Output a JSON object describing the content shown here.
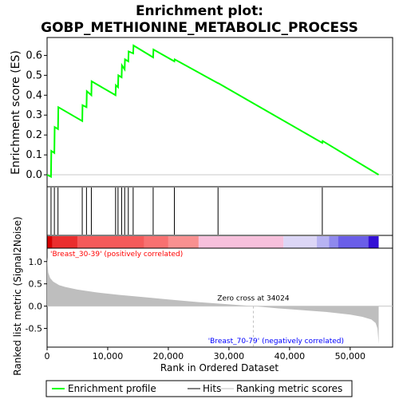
{
  "chart_data": [
    {
      "type": "line",
      "title_line1": "Enrichment plot:",
      "title_line2": "GOBP_METHIONINE_METABOLIC_PROCESS",
      "ylabel": "Enrichment score (ES)",
      "xlim": [
        0,
        57000
      ],
      "ylim": [
        -0.06,
        0.69
      ],
      "y_ticks": [
        "0.0",
        "0.1",
        "0.2",
        "0.3",
        "0.4",
        "0.5",
        "0.6"
      ],
      "y_tick_values": [
        0.0,
        0.1,
        0.2,
        0.3,
        0.4,
        0.5,
        0.6
      ],
      "series": [
        {
          "name": "Enrichment profile",
          "color": "#00ff00",
          "x": [
            0,
            650,
            700,
            1200,
            1250,
            1800,
            1850,
            5800,
            5850,
            6500,
            6550,
            7300,
            7350,
            11300,
            11350,
            11700,
            11750,
            12300,
            12350,
            12800,
            12850,
            13400,
            13450,
            14200,
            14250,
            17500,
            17550,
            21000,
            21050,
            28200,
            28250,
            45400,
            45450,
            54700
          ],
          "y": [
            0.0,
            -0.01,
            0.12,
            0.11,
            0.24,
            0.23,
            0.34,
            0.27,
            0.35,
            0.34,
            0.42,
            0.4,
            0.47,
            0.4,
            0.45,
            0.44,
            0.5,
            0.49,
            0.55,
            0.53,
            0.58,
            0.57,
            0.62,
            0.61,
            0.65,
            0.59,
            0.63,
            0.57,
            0.58,
            0.46,
            0.46,
            0.16,
            0.17,
            0.0
          ]
        }
      ]
    },
    {
      "type": "hits",
      "name": "Hits",
      "hit_positions": [
        650,
        1200,
        1800,
        5800,
        6500,
        7300,
        11300,
        11700,
        12300,
        12800,
        13400,
        14200,
        17500,
        21000,
        28200,
        45400
      ]
    },
    {
      "type": "area",
      "name": "Ranking metric scores",
      "ylabel": "Ranked list metric (Signal2Noise)",
      "xlabel": "Rank in Ordered Dataset",
      "xlim": [
        0,
        57000
      ],
      "ylim": [
        -0.92,
        1.3
      ],
      "y_ticks": [
        "-0.5",
        "0.0",
        "0.5",
        "1.0"
      ],
      "y_tick_values": [
        -0.5,
        0.0,
        0.5,
        1.0
      ],
      "x_ticks": [
        "0",
        "10,000",
        "20,000",
        "30,000",
        "40,000",
        "50,000"
      ],
      "x_tick_values": [
        0,
        10000,
        20000,
        30000,
        40000,
        50000
      ],
      "color": "#bebebe",
      "x": [
        0,
        200,
        500,
        1000,
        2000,
        3000,
        5000,
        8000,
        12000,
        16000,
        20000,
        25000,
        30000,
        34024,
        38000,
        42000,
        46000,
        50000,
        52000,
        53500,
        54200,
        54500,
        54700
      ],
      "y": [
        1.1,
        0.75,
        0.63,
        0.55,
        0.47,
        0.43,
        0.37,
        0.31,
        0.25,
        0.2,
        0.15,
        0.09,
        0.04,
        0.0,
        -0.05,
        -0.09,
        -0.13,
        -0.19,
        -0.24,
        -0.3,
        -0.38,
        -0.5,
        -0.85
      ],
      "zero_cross_label": "Zero cross at 34024",
      "zero_cross": 34024,
      "pos_label": "'Breast_30-39' (positively correlated)",
      "neg_label": "'Breast_70-79' (negatively correlated)",
      "pos_color": "#ff0000",
      "neg_color": "#0000ff"
    }
  ],
  "gradient_bar": [
    {
      "x0": 0,
      "x1": 900,
      "color": "#d60000"
    },
    {
      "x0": 900,
      "x1": 5000,
      "color": "#ea2e2e"
    },
    {
      "x0": 5000,
      "x1": 16000,
      "color": "#f55a5a"
    },
    {
      "x0": 16000,
      "x1": 20000,
      "color": "#f87171"
    },
    {
      "x0": 20000,
      "x1": 25000,
      "color": "#f99090"
    },
    {
      "x0": 25000,
      "x1": 39000,
      "color": "#f7c0dc"
    },
    {
      "x0": 39000,
      "x1": 44500,
      "color": "#dcd6f6"
    },
    {
      "x0": 44500,
      "x1": 46500,
      "color": "#b7b3f2"
    },
    {
      "x0": 46500,
      "x1": 48000,
      "color": "#8f89ee"
    },
    {
      "x0": 48000,
      "x1": 53000,
      "color": "#6a5ee8"
    },
    {
      "x0": 53000,
      "x1": 54700,
      "color": "#3310d6"
    }
  ],
  "legend": {
    "items": [
      {
        "label": "Enrichment profile",
        "color": "#00ff00"
      },
      {
        "label": "Hits",
        "color": "#000000"
      },
      {
        "label": "Ranking metric scores",
        "color": "#bebebe"
      }
    ]
  }
}
